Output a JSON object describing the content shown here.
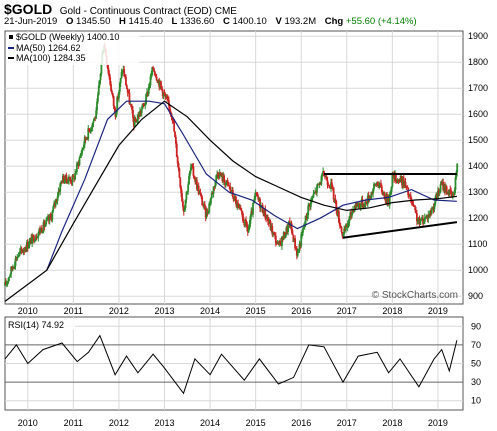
{
  "header": {
    "symbol": "$GOLD",
    "description": "Gold - Continuous Contract (EOD) CME",
    "date": "21-Jun-2019",
    "open_label": "O",
    "open": "1345.50",
    "high_label": "H",
    "high": "1415.40",
    "low_label": "L",
    "low": "1336.60",
    "close_label": "C",
    "close": "1400.10",
    "volume_label": "V",
    "volume": "193.2M",
    "change_label": "Chg",
    "change": "+55.60 (+4.14%)"
  },
  "watermark": "© StockCharts.com",
  "colors": {
    "up": "#2b8a2b",
    "down": "#cc2222",
    "ma50": "#1a237e",
    "ma100": "#000000",
    "rsi": "#000000",
    "grid": "#d8d8d8"
  },
  "chart_data": [
    {
      "type": "candlestick",
      "series_label": "$GOLD (Weekly) 1400.10",
      "frequency": "weekly",
      "x_tick_labels": [
        "2010",
        "2011",
        "2012",
        "2013",
        "2014",
        "2015",
        "2016",
        "2017",
        "2018",
        "2019"
      ],
      "y_tick_labels": [
        "900",
        "1000",
        "1100",
        "1200",
        "1300",
        "1400",
        "1500",
        "1600",
        "1700",
        "1800",
        "1900"
      ],
      "ylim": [
        870,
        1920
      ],
      "grid": true,
      "legend_position": "top-left",
      "last_close": 1400.1,
      "approx_close_path": [
        {
          "x": "2009-07",
          "y": 940
        },
        {
          "x": "2009-10",
          "y": 1050
        },
        {
          "x": "2010-01",
          "y": 1100
        },
        {
          "x": "2010-04",
          "y": 1150
        },
        {
          "x": "2010-07",
          "y": 1200
        },
        {
          "x": "2010-10",
          "y": 1350
        },
        {
          "x": "2011-01",
          "y": 1350
        },
        {
          "x": "2011-04",
          "y": 1500
        },
        {
          "x": "2011-07",
          "y": 1600
        },
        {
          "x": "2011-09",
          "y": 1880
        },
        {
          "x": "2011-12",
          "y": 1600
        },
        {
          "x": "2012-02",
          "y": 1780
        },
        {
          "x": "2012-05",
          "y": 1560
        },
        {
          "x": "2012-08",
          "y": 1650
        },
        {
          "x": "2012-10",
          "y": 1780
        },
        {
          "x": "2013-01",
          "y": 1670
        },
        {
          "x": "2013-03",
          "y": 1600
        },
        {
          "x": "2013-06",
          "y": 1230
        },
        {
          "x": "2013-08",
          "y": 1400
        },
        {
          "x": "2013-12",
          "y": 1210
        },
        {
          "x": "2014-03",
          "y": 1380
        },
        {
          "x": "2014-06",
          "y": 1320
        },
        {
          "x": "2014-09",
          "y": 1220
        },
        {
          "x": "2014-11",
          "y": 1150
        },
        {
          "x": "2015-01",
          "y": 1290
        },
        {
          "x": "2015-04",
          "y": 1200
        },
        {
          "x": "2015-07",
          "y": 1090
        },
        {
          "x": "2015-10",
          "y": 1180
        },
        {
          "x": "2015-12",
          "y": 1060
        },
        {
          "x": "2016-03",
          "y": 1250
        },
        {
          "x": "2016-07",
          "y": 1370
        },
        {
          "x": "2016-09",
          "y": 1320
        },
        {
          "x": "2016-12",
          "y": 1130
        },
        {
          "x": "2017-03",
          "y": 1250
        },
        {
          "x": "2017-06",
          "y": 1260
        },
        {
          "x": "2017-09",
          "y": 1340
        },
        {
          "x": "2017-12",
          "y": 1260
        },
        {
          "x": "2018-01",
          "y": 1360
        },
        {
          "x": "2018-04",
          "y": 1340
        },
        {
          "x": "2018-06",
          "y": 1260
        },
        {
          "x": "2018-08",
          "y": 1180
        },
        {
          "x": "2018-11",
          "y": 1220
        },
        {
          "x": "2019-02",
          "y": 1330
        },
        {
          "x": "2019-05",
          "y": 1280
        },
        {
          "x": "2019-06",
          "y": 1400
        }
      ],
      "series": [
        {
          "name": "MA(50) 1264.62",
          "last": 1264.62,
          "values": [
            {
              "x": "2010-06",
              "y": 1000
            },
            {
              "x": "2010-10",
              "y": 1150
            },
            {
              "x": "2011-04",
              "y": 1350
            },
            {
              "x": "2011-10",
              "y": 1580
            },
            {
              "x": "2012-03",
              "y": 1650
            },
            {
              "x": "2012-09",
              "y": 1650
            },
            {
              "x": "2013-01",
              "y": 1640
            },
            {
              "x": "2013-06",
              "y": 1520
            },
            {
              "x": "2013-12",
              "y": 1370
            },
            {
              "x": "2014-06",
              "y": 1300
            },
            {
              "x": "2014-12",
              "y": 1270
            },
            {
              "x": "2015-06",
              "y": 1210
            },
            {
              "x": "2015-12",
              "y": 1160
            },
            {
              "x": "2016-06",
              "y": 1200
            },
            {
              "x": "2016-12",
              "y": 1250
            },
            {
              "x": "2017-06",
              "y": 1270
            },
            {
              "x": "2017-12",
              "y": 1280
            },
            {
              "x": "2018-06",
              "y": 1310
            },
            {
              "x": "2018-12",
              "y": 1270
            },
            {
              "x": "2019-06",
              "y": 1265
            }
          ]
        },
        {
          "name": "MA(100) 1284.35",
          "last": 1284.35,
          "values": [
            {
              "x": "2009-07",
              "y": 880
            },
            {
              "x": "2010-06",
              "y": 1000
            },
            {
              "x": "2011-01",
              "y": 1180
            },
            {
              "x": "2011-07",
              "y": 1330
            },
            {
              "x": "2012-01",
              "y": 1480
            },
            {
              "x": "2012-07",
              "y": 1580
            },
            {
              "x": "2013-01",
              "y": 1650
            },
            {
              "x": "2013-07",
              "y": 1590
            },
            {
              "x": "2014-01",
              "y": 1500
            },
            {
              "x": "2014-07",
              "y": 1420
            },
            {
              "x": "2015-01",
              "y": 1360
            },
            {
              "x": "2015-07",
              "y": 1320
            },
            {
              "x": "2016-01",
              "y": 1280
            },
            {
              "x": "2016-07",
              "y": 1250
            },
            {
              "x": "2017-01",
              "y": 1230
            },
            {
              "x": "2017-07",
              "y": 1240
            },
            {
              "x": "2018-01",
              "y": 1260
            },
            {
              "x": "2018-07",
              "y": 1270
            },
            {
              "x": "2019-01",
              "y": 1275
            },
            {
              "x": "2019-06",
              "y": 1284
            }
          ]
        }
      ],
      "annotations": [
        {
          "type": "horizontal-resistance",
          "start": {
            "x": "2016-07",
            "y": 1370
          },
          "end": {
            "x": "2019-06",
            "y": 1370
          }
        },
        {
          "type": "rising-support",
          "start": {
            "x": "2016-12",
            "y": 1125
          },
          "end": {
            "x": "2019-06",
            "y": 1185
          }
        }
      ]
    },
    {
      "type": "line",
      "series_label": "RSI(14) 74.92",
      "x_tick_labels": [
        "2010",
        "2011",
        "2012",
        "2013",
        "2014",
        "2015",
        "2016",
        "2017",
        "2018",
        "2019"
      ],
      "y_tick_labels": [
        "90",
        "70",
        "50",
        "30",
        "10"
      ],
      "ylim": [
        0,
        100
      ],
      "reference_lines": [
        30,
        70
      ],
      "last": 74.92,
      "values": [
        {
          "x": "2009-07",
          "y": 55
        },
        {
          "x": "2009-10",
          "y": 70
        },
        {
          "x": "2010-01",
          "y": 50
        },
        {
          "x": "2010-05",
          "y": 65
        },
        {
          "x": "2010-10",
          "y": 72
        },
        {
          "x": "2011-02",
          "y": 52
        },
        {
          "x": "2011-05",
          "y": 62
        },
        {
          "x": "2011-08",
          "y": 80
        },
        {
          "x": "2011-12",
          "y": 38
        },
        {
          "x": "2012-03",
          "y": 58
        },
        {
          "x": "2012-06",
          "y": 40
        },
        {
          "x": "2012-10",
          "y": 60
        },
        {
          "x": "2013-01",
          "y": 45
        },
        {
          "x": "2013-06",
          "y": 18
        },
        {
          "x": "2013-09",
          "y": 55
        },
        {
          "x": "2014-01",
          "y": 38
        },
        {
          "x": "2014-04",
          "y": 60
        },
        {
          "x": "2014-10",
          "y": 32
        },
        {
          "x": "2015-02",
          "y": 55
        },
        {
          "x": "2015-07",
          "y": 28
        },
        {
          "x": "2015-11",
          "y": 35
        },
        {
          "x": "2016-03",
          "y": 70
        },
        {
          "x": "2016-07",
          "y": 68
        },
        {
          "x": "2016-12",
          "y": 30
        },
        {
          "x": "2017-04",
          "y": 58
        },
        {
          "x": "2017-09",
          "y": 62
        },
        {
          "x": "2017-12",
          "y": 40
        },
        {
          "x": "2018-03",
          "y": 55
        },
        {
          "x": "2018-08",
          "y": 25
        },
        {
          "x": "2018-12",
          "y": 55
        },
        {
          "x": "2019-02",
          "y": 65
        },
        {
          "x": "2019-04",
          "y": 42
        },
        {
          "x": "2019-06",
          "y": 75
        }
      ]
    }
  ]
}
